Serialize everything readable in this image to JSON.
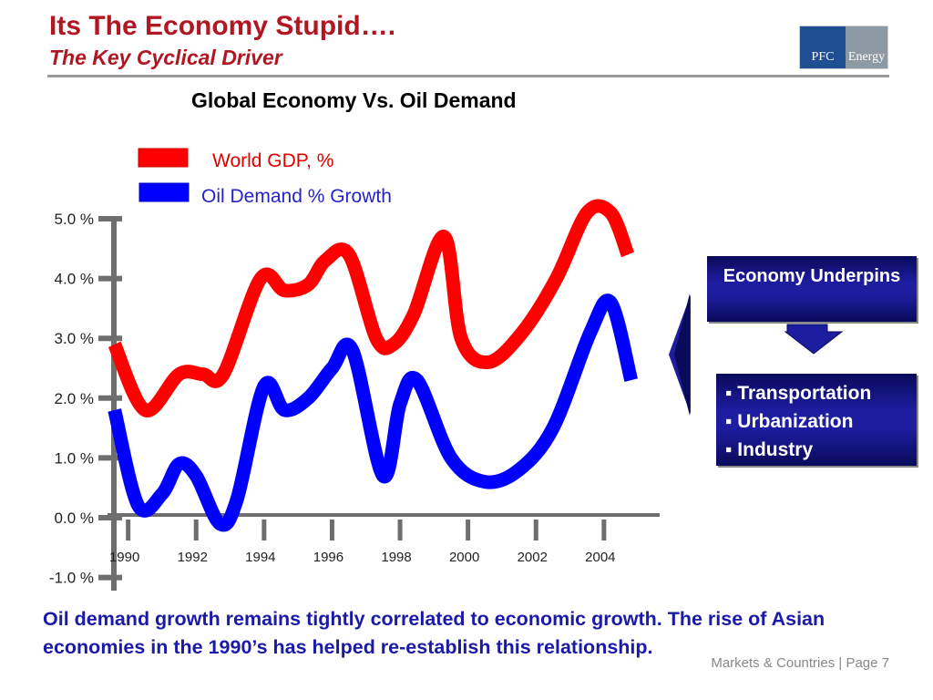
{
  "header": {
    "title": "Its The Economy Stupid….",
    "subtitle": "The Key Cyclical Driver",
    "logo_left": "PFC",
    "logo_right": "Energy"
  },
  "colors": {
    "title": "#b01722",
    "gdp_series": "#ff0000",
    "oil_series": "#0000ff",
    "axis": "#6e6e6e",
    "caption": "#1a1aa8",
    "box": "#1d1da0"
  },
  "chart_data": {
    "type": "line",
    "title": "Global Economy Vs. Oil Demand",
    "xlabel": "",
    "ylabel": "",
    "x_ticks": [
      "1990",
      "1992",
      "1994",
      "1996",
      "1998",
      "2000",
      "2002",
      "2004"
    ],
    "y_ticks": [
      "5.0 %",
      "4.0 %",
      "3.0 %",
      "2.0 %",
      "1.0 %",
      "0.0 %",
      "-1.0 %"
    ],
    "ylim": [
      -1.0,
      5.0
    ],
    "xlim": [
      1989.5,
      2005.5
    ],
    "legend": "top-left",
    "series": [
      {
        "name": "World GDP, %",
        "color": "#ff0000",
        "x": [
          1989.6,
          1990.5,
          1991.5,
          1992.2,
          1992.8,
          1993.9,
          1994.6,
          1995.3,
          1995.8,
          1996.5,
          1997.3,
          1997.8,
          1998.4,
          1999.3,
          1999.8,
          2000.6,
          2001.6,
          2002.6,
          2003.5,
          2004.2,
          2004.7
        ],
        "values": [
          2.9,
          1.8,
          2.4,
          2.4,
          2.4,
          4.0,
          3.8,
          3.9,
          4.3,
          4.4,
          3.0,
          2.9,
          3.4,
          4.7,
          3.0,
          2.6,
          3.1,
          4.0,
          5.1,
          5.1,
          4.4
        ]
      },
      {
        "name": "Oil Demand % Growth",
        "color": "#0000ff",
        "x": [
          1989.6,
          1990.3,
          1991.0,
          1991.5,
          1992.0,
          1992.7,
          1993.2,
          1994.0,
          1994.6,
          1995.3,
          1996.0,
          1996.6,
          1997.5,
          1998.0,
          1998.5,
          1999.5,
          2000.5,
          2001.5,
          2002.5,
          2003.6,
          2004.2,
          2004.8
        ],
        "values": [
          1.8,
          0.2,
          0.4,
          0.9,
          0.7,
          -0.1,
          0.3,
          2.2,
          1.8,
          2.0,
          2.5,
          2.8,
          0.7,
          1.9,
          2.3,
          1.0,
          0.6,
          0.8,
          1.5,
          3.1,
          3.6,
          2.3
        ]
      }
    ]
  },
  "callout": {
    "top_box": "Economy Underpins",
    "items": [
      "Transportation",
      "Urbanization",
      "Industry"
    ]
  },
  "caption": "Oil demand growth remains tightly correlated to economic growth. The rise of Asian economies in the 1990’s has helped re-establish this relationship.",
  "footer": "Markets & Countries  |  Page 7"
}
